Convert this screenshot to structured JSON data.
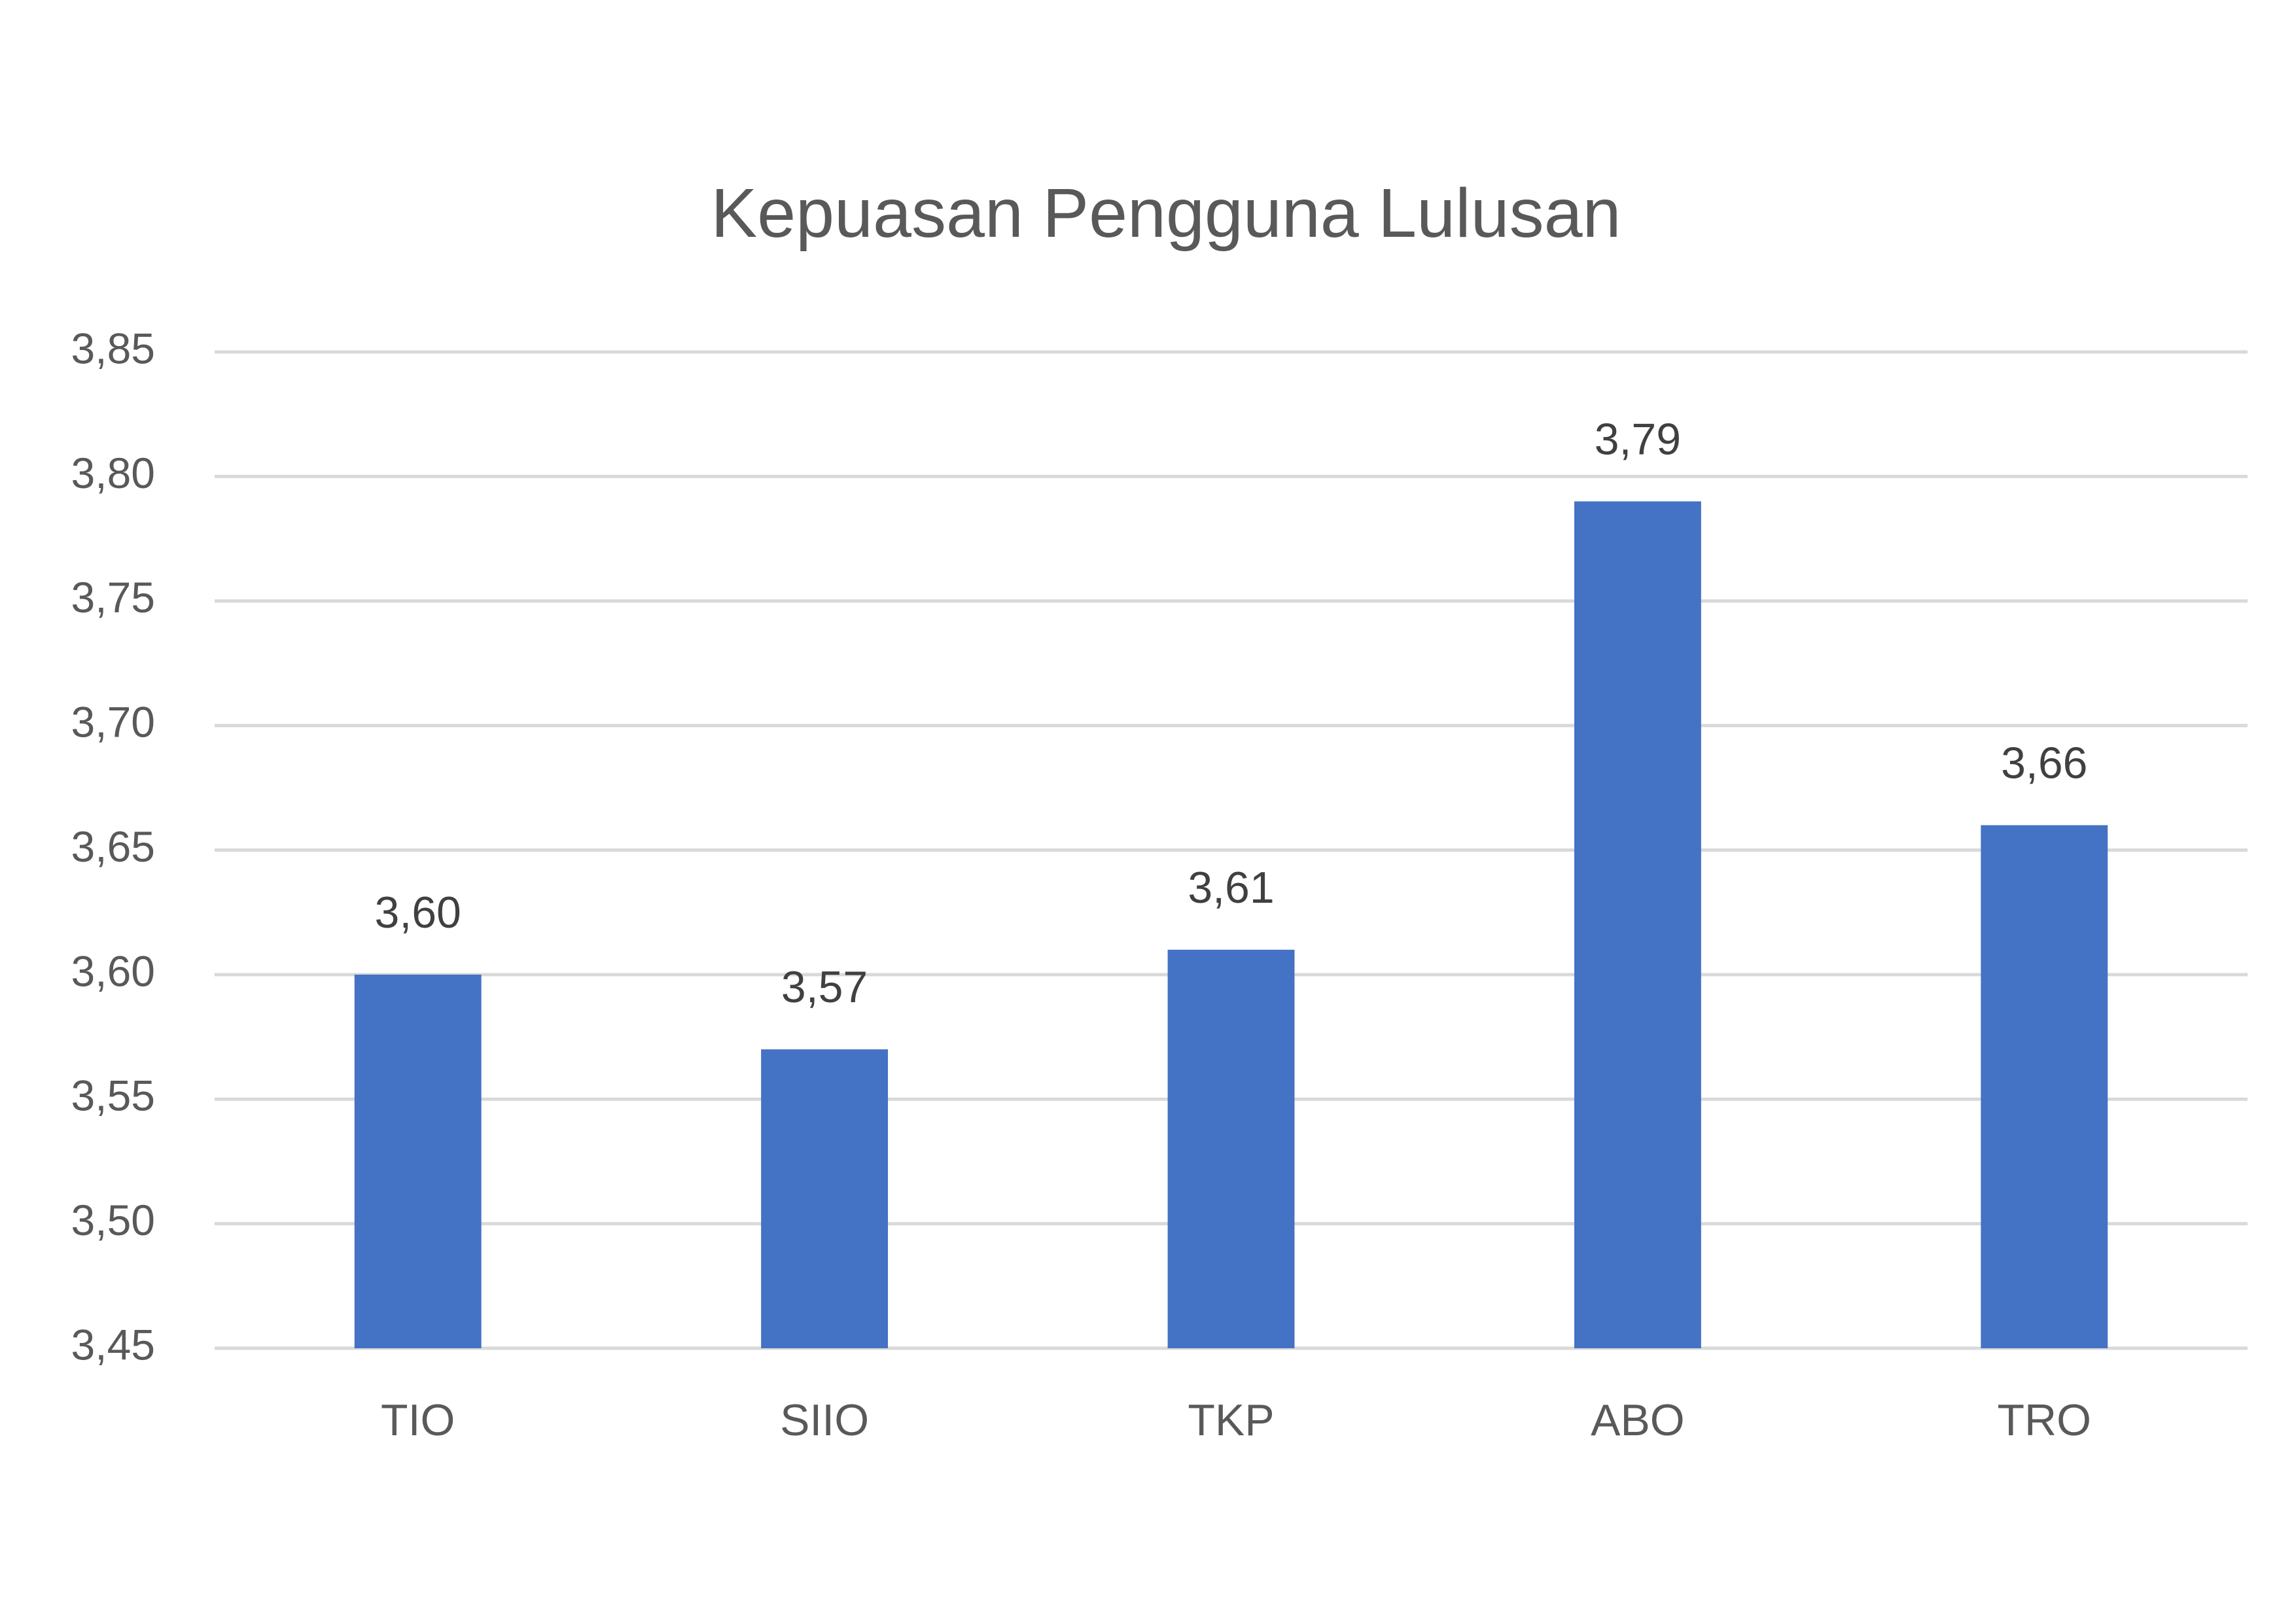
{
  "chart_data": {
    "type": "bar",
    "title": "Kepuasan Pengguna Lulusan",
    "categories": [
      "TIO",
      "SIIO",
      "TKP",
      "ABO",
      "TRO"
    ],
    "values": [
      3.6,
      3.57,
      3.61,
      3.79,
      3.66
    ],
    "value_labels": [
      "3,60",
      "3,57",
      "3,61",
      "3,79",
      "3,66"
    ],
    "color": "#4472c4",
    "ylim": [
      3.45,
      3.85
    ],
    "yticks": [
      {
        "value": 3.45,
        "label": "3,45"
      },
      {
        "value": 3.5,
        "label": "3,50"
      },
      {
        "value": 3.55,
        "label": "3,55"
      },
      {
        "value": 3.6,
        "label": "3,60"
      },
      {
        "value": 3.65,
        "label": "3,65"
      },
      {
        "value": 3.7,
        "label": "3,70"
      },
      {
        "value": 3.75,
        "label": "3,75"
      },
      {
        "value": 3.8,
        "label": "3,80"
      },
      {
        "value": 3.85,
        "label": "3,85"
      }
    ],
    "grid": true
  }
}
